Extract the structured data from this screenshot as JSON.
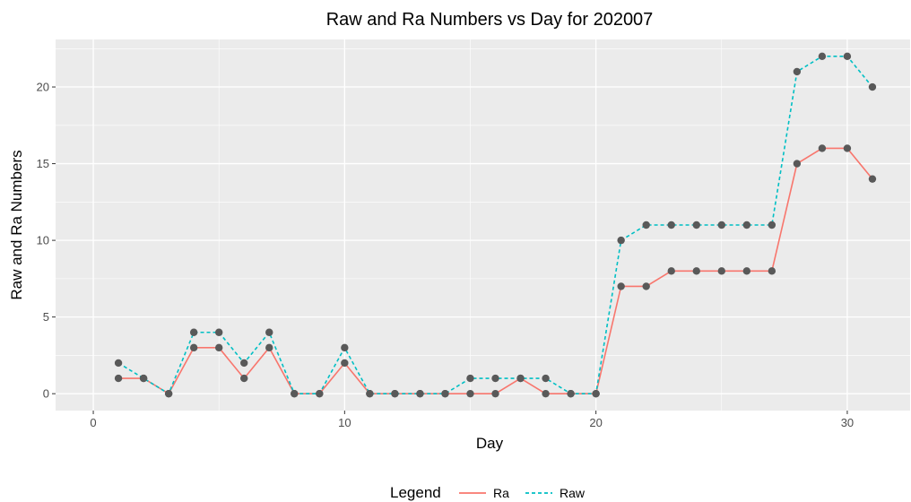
{
  "chart_data": {
    "type": "line",
    "title": "Raw and Ra Numbers vs Day for 202007",
    "xlabel": "Day",
    "ylabel": "Raw and Ra Numbers",
    "xlim": [
      -1.5,
      32.5
    ],
    "ylim": [
      -1.1,
      23.1
    ],
    "x_ticks": [
      0,
      10,
      20,
      30
    ],
    "x_tick_labels": [
      "0",
      "10",
      "20",
      "30"
    ],
    "y_ticks": [
      0,
      5,
      10,
      15,
      20
    ],
    "y_tick_labels": [
      "0",
      "5",
      "10",
      "15",
      "20"
    ],
    "grid": true,
    "legend": {
      "title": "Legend",
      "placement": "bottom"
    },
    "x": [
      1,
      2,
      3,
      4,
      5,
      6,
      7,
      8,
      9,
      10,
      11,
      12,
      13,
      14,
      15,
      16,
      17,
      18,
      19,
      20,
      21,
      22,
      23,
      24,
      25,
      26,
      27,
      28,
      29,
      30,
      31
    ],
    "series": [
      {
        "name": "Ra",
        "color": "#F8766D",
        "dash": "solid",
        "values": [
          1,
          1,
          0,
          3,
          3,
          1,
          3,
          0,
          0,
          2,
          0,
          0,
          0,
          0,
          0,
          0,
          1,
          0,
          0,
          0,
          7,
          7,
          8,
          8,
          8,
          8,
          8,
          15,
          16,
          16,
          14
        ]
      },
      {
        "name": "Raw",
        "color": "#00BFC4",
        "dash": "dashed",
        "values": [
          2,
          1,
          0,
          4,
          4,
          2,
          4,
          0,
          0,
          3,
          0,
          0,
          0,
          0,
          1,
          1,
          1,
          1,
          0,
          0,
          10,
          11,
          11,
          11,
          11,
          11,
          11,
          21,
          22,
          22,
          20
        ]
      }
    ],
    "point_color": "#595959",
    "panel_color": "#EBEBEB",
    "grid_color": "#FFFFFF"
  }
}
